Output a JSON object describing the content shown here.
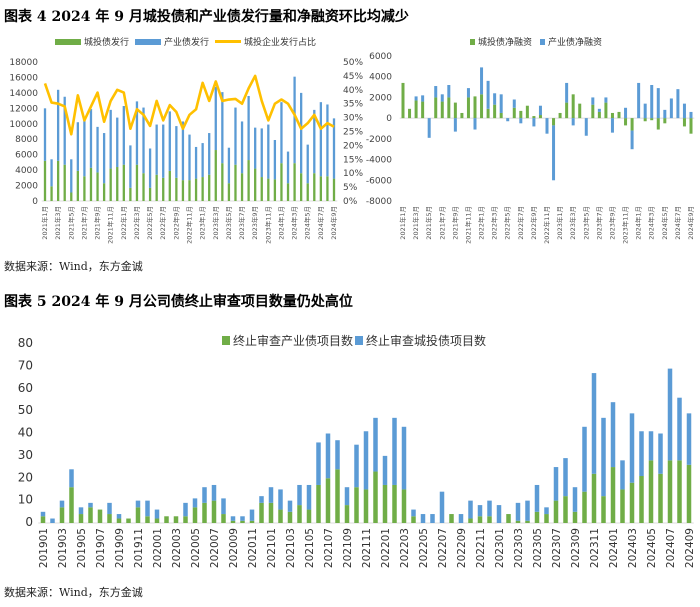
{
  "figure4": {
    "title": "图表 4   2024 年 9 月城投债和产业债发行量和净融资环比均减少",
    "source": "数据来源：Wind，东方金诚"
  },
  "figure5": {
    "title": "图表 5  2024 年 9 月公司债终止审查项目数量仍处高位",
    "source": "数据来源：Wind，东方金诚"
  },
  "chart_data": [
    {
      "type": "bar",
      "stacked": true,
      "secondary_line": true,
      "x_tick_labels": [
        "2021年1月",
        "2021年3月",
        "2021年5月",
        "2021年7月",
        "2021年9月",
        "2021年11月",
        "2022年1月",
        "2022年3月",
        "2022年5月",
        "2022年7月",
        "2022年9月",
        "2022年11月",
        "2023年1月",
        "2023年3月",
        "2023年5月",
        "2023年7月",
        "2023年9月",
        "2023年11月",
        "2024年1月",
        "2024年3月",
        "2024年5月",
        "2024年7月",
        "2024年9月"
      ],
      "period": "2021年1月 – 2024年9月 (monthly)",
      "ylim": [
        0,
        18000
      ],
      "y_ticks": [
        "0",
        "2000",
        "4000",
        "6000",
        "8000",
        "10000",
        "12000",
        "14000",
        "16000",
        "18000"
      ],
      "y2lim": [
        0,
        50
      ],
      "y2_ticks": [
        "0%",
        "5%",
        "10%",
        "15%",
        "20%",
        "25%",
        "30%",
        "35%",
        "40%",
        "45%",
        "50%"
      ],
      "legend_position": "top",
      "grid": false,
      "series": [
        {
          "name": "城投债发行",
          "color": "#70AD47",
          "values": [
            5200,
            1900,
            5200,
            4700,
            1100,
            3900,
            3200,
            4300,
            3700,
            2300,
            4200,
            4400,
            4700,
            1700,
            4700,
            3600,
            1700,
            3400,
            3000,
            3900,
            3000,
            2700,
            2700,
            2900,
            3100,
            3400,
            6600,
            4900,
            2300,
            4700,
            3600,
            5300,
            4200,
            3100,
            2900,
            2800,
            4900,
            2300,
            4900,
            3600,
            2300,
            3600,
            3200,
            3200,
            2900
          ]
        },
        {
          "name": "产业债发行",
          "color": "#5B9BD5",
          "values": [
            6800,
            3500,
            9200,
            8800,
            4300,
            6300,
            7300,
            7600,
            5900,
            6500,
            7600,
            6400,
            7600,
            5500,
            8200,
            8500,
            5100,
            6500,
            6900,
            7700,
            6700,
            7600,
            5900,
            4100,
            4400,
            5400,
            8200,
            9200,
            4600,
            7400,
            6700,
            8300,
            5300,
            6300,
            7000,
            5100,
            7900,
            4100,
            11200,
            10400,
            5000,
            8200,
            9600,
            9300,
            7800
          ]
        },
        {
          "name": "城投企业发行占比",
          "color": "#FFC000",
          "type": "line",
          "unit": "%",
          "values": [
            42.3,
            35.4,
            35,
            34,
            24,
            38,
            29,
            34,
            39,
            28.5,
            36,
            40,
            39,
            26,
            33,
            31,
            27,
            36,
            29,
            34.5,
            32,
            26,
            31,
            33,
            42.5,
            36,
            43,
            36,
            36.5,
            36.7,
            35,
            40.5,
            45,
            36,
            29,
            35,
            36.5,
            35,
            31,
            26,
            28,
            31,
            26,
            28,
            26.7
          ]
        }
      ]
    },
    {
      "type": "bar",
      "stacked": true,
      "x_tick_labels": [
        "2021年1月",
        "2021年3月",
        "2021年5月",
        "2021年7月",
        "2021年9月",
        "2021年11月",
        "2022年1月",
        "2022年3月",
        "2022年5月",
        "2022年7月",
        "2022年9月",
        "2022年11月",
        "2023年1月",
        "2023年3月",
        "2023年5月",
        "2023年7月",
        "2023年9月",
        "2023年11月",
        "2024年1月",
        "2024年3月",
        "2024年5月",
        "2024年7月",
        "2024年9月"
      ],
      "ylim": [
        -8000,
        6000
      ],
      "y_ticks": [
        "-8000",
        "-6000",
        "-4000",
        "-2000",
        "0",
        "2000",
        "4000",
        "6000"
      ],
      "legend_position": "top",
      "grid": false,
      "series": [
        {
          "name": "城投债净融资",
          "color": "#70AD47",
          "values": [
            3400,
            900,
            1700,
            1600,
            0,
            2000,
            1600,
            2000,
            1500,
            500,
            2000,
            2100,
            2300,
            900,
            1300,
            500,
            0,
            1000,
            700,
            1200,
            200,
            300,
            0,
            -700,
            500,
            1500,
            2300,
            1400,
            0,
            1300,
            600,
            1500,
            500,
            600,
            -700,
            -1200,
            0,
            -300,
            -200,
            -1100,
            -500,
            0,
            0,
            -800,
            -1500
          ]
        },
        {
          "name": "产业债净融资",
          "color": "#5B9BD5",
          "values": [
            0,
            0,
            400,
            600,
            -1900,
            1100,
            700,
            1200,
            -1300,
            0,
            900,
            -1100,
            2600,
            2700,
            1100,
            1800,
            -300,
            800,
            -500,
            0,
            -800,
            900,
            -1500,
            -5300,
            0,
            1900,
            -700,
            0,
            -1700,
            700,
            300,
            500,
            -1400,
            0,
            1000,
            -1800,
            3400,
            1400,
            3200,
            2900,
            800,
            1900,
            2800,
            1400,
            600
          ]
        }
      ]
    },
    {
      "type": "bar",
      "stacked": true,
      "x_tick_labels": [
        "201901",
        "201903",
        "201905",
        "201907",
        "201909",
        "201911",
        "202001",
        "202003",
        "202005",
        "202007",
        "202009",
        "202011",
        "202101",
        "202103",
        "202105",
        "202107",
        "202109",
        "202111",
        "202201",
        "202203",
        "202205",
        "202207",
        "202209",
        "202211",
        "202301",
        "202303",
        "202305",
        "202307",
        "202309",
        "202311",
        "202401",
        "202403",
        "202405",
        "202407",
        "202409"
      ],
      "ylim": [
        0,
        80
      ],
      "y_ticks": [
        "0",
        "10",
        "20",
        "30",
        "40",
        "50",
        "60",
        "70",
        "80"
      ],
      "legend_position": "top",
      "grid": false,
      "series": [
        {
          "name": "终止审查产业债项目数",
          "color": "#70AD47",
          "values": [
            3,
            0,
            7,
            16,
            4,
            7,
            6,
            4,
            2,
            2,
            7,
            3,
            2,
            3,
            3,
            3,
            7,
            9,
            10,
            4,
            1,
            1,
            1,
            9,
            9,
            6,
            5,
            8,
            6,
            17,
            20,
            24,
            8,
            16,
            15,
            23,
            17,
            17,
            15,
            3,
            0,
            0,
            0,
            4,
            0,
            2,
            3,
            3,
            0,
            4,
            1,
            1,
            5,
            4,
            10,
            12,
            5,
            14,
            22,
            12,
            25,
            15,
            18,
            21,
            28,
            22,
            28,
            28,
            26
          ]
        },
        {
          "name": "终止审查城投债项目数",
          "color": "#5B9BD5",
          "values": [
            2,
            2,
            3,
            8,
            3,
            2,
            0,
            5,
            2,
            0,
            3,
            7,
            4,
            0,
            0,
            6,
            4,
            7,
            7,
            7,
            2,
            2,
            5,
            3,
            7,
            9,
            5,
            9,
            11,
            19,
            20,
            13,
            8,
            19,
            26,
            24,
            13,
            30,
            28,
            3,
            4,
            4,
            14,
            0,
            4,
            8,
            5,
            7,
            8,
            0,
            8,
            9,
            12,
            3,
            15,
            17,
            11,
            29,
            45,
            35,
            29,
            13,
            31,
            20,
            13,
            18,
            41,
            28,
            23
          ]
        }
      ]
    }
  ]
}
